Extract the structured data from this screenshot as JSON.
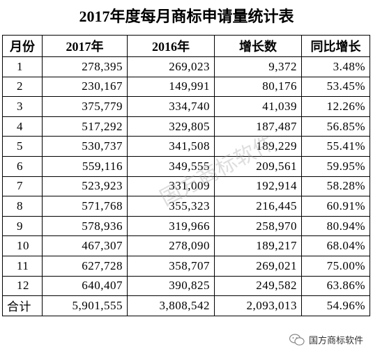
{
  "title": "2017年度每月商标申请量统计表",
  "table": {
    "header": [
      "月份",
      "2017年",
      "2016年",
      "增长数",
      "同比增长"
    ],
    "rows": [
      [
        "1",
        "278,395",
        "269,023",
        "9,372",
        "3.48%"
      ],
      [
        "2",
        "230,167",
        "149,991",
        "80,176",
        "53.45%"
      ],
      [
        "3",
        "375,779",
        "334,740",
        "41,039",
        "12.26%"
      ],
      [
        "4",
        "517,292",
        "329,805",
        "187,487",
        "56.85%"
      ],
      [
        "5",
        "530,737",
        "341,508",
        "189,229",
        "55.41%"
      ],
      [
        "6",
        "559,116",
        "349,555",
        "209,561",
        "59.95%"
      ],
      [
        "7",
        "523,923",
        "331,009",
        "192,914",
        "58.28%"
      ],
      [
        "8",
        "571,768",
        "355,323",
        "216,445",
        "60.91%"
      ],
      [
        "9",
        "578,936",
        "319,966",
        "258,970",
        "80.94%"
      ],
      [
        "10",
        "467,307",
        "278,090",
        "189,217",
        "68.04%"
      ],
      [
        "11",
        "627,728",
        "358,707",
        "269,021",
        "75.00%"
      ],
      [
        "12",
        "640,407",
        "390,825",
        "249,582",
        "63.86%"
      ],
      [
        "合计",
        "5,901,555",
        "3,808,542",
        "2,093,013",
        "54.96%"
      ]
    ]
  },
  "watermark": "国方商标软件",
  "footer": {
    "account": "国方商标软件"
  }
}
